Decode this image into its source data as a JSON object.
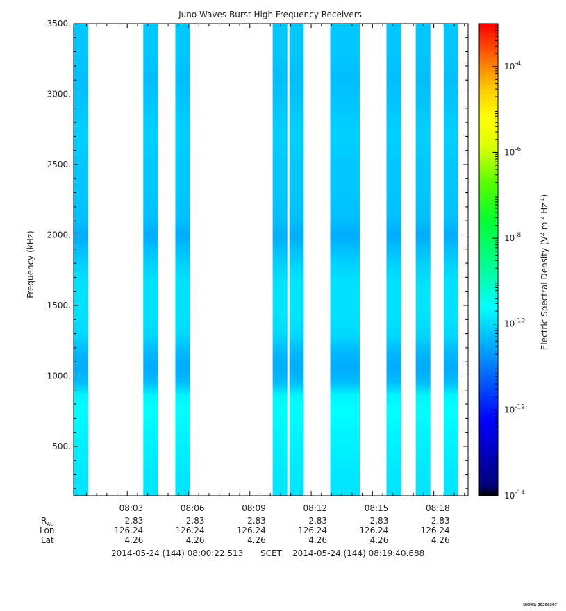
{
  "chart_data": {
    "type": "heatmap",
    "title": "Juno Waves Burst High Frequency Receivers",
    "ylabel": "Frequency (kHz)",
    "ylim": [
      150,
      3500
    ],
    "yticks": [
      "500.",
      "1000.",
      "1500.",
      "2000.",
      "2500.",
      "3000.",
      "3500."
    ],
    "ytick_values": [
      500,
      1000,
      1500,
      2000,
      2500,
      3000,
      3500
    ],
    "x_start": "2014-05-24T08:00:22.513",
    "x_end": "2014-05-24T08:19:40.688",
    "xticks": [
      "08:03",
      "08:06",
      "08:09",
      "08:12",
      "08:15",
      "08:18"
    ],
    "xtick_times": [
      "2014-05-24T08:03:00",
      "2014-05-24T08:06:00",
      "2014-05-24T08:09:00",
      "2014-05-24T08:12:00",
      "2014-05-24T08:15:00",
      "2014-05-24T08:18:00"
    ],
    "ephemeris": {
      "row_labels": {
        "r": "R",
        "r_sub": "AU",
        "lon": "Lon",
        "lat": "Lat"
      },
      "r_au": [
        "2.83",
        "2.83",
        "2.83",
        "2.83",
        "2.83",
        "2.83"
      ],
      "lon": [
        "126.24",
        "126.24",
        "126.24",
        "126.24",
        "126.24",
        "126.24"
      ],
      "lat": [
        "4.26",
        "4.26",
        "4.26",
        "4.26",
        "4.26",
        "4.26"
      ]
    },
    "time_range_label": {
      "start": "2014-05-24 (144) 08:00:22.513",
      "scet": "SCET",
      "end": "2014-05-24 (144) 08:19:40.688"
    },
    "colorbar": {
      "label_main": "Electric Spectral Density (V",
      "label_sup1": "2",
      "label_mid": " m",
      "label_sup2": "-2",
      "label_mid2": " Hz",
      "label_sup3": "-1",
      "label_end": ")",
      "scale": "log",
      "range_exponents": [
        -14,
        -3
      ],
      "tick_exponents": [
        "-4",
        "-6",
        "-8",
        "-10",
        "-12",
        "-14"
      ],
      "tick_values": [
        -4,
        -6,
        -8,
        -10,
        -12,
        -14
      ],
      "tick_base": "10"
    },
    "bursts": [
      {
        "start": "2014-05-24T08:00:22",
        "end": "2014-05-24T08:01:05"
      },
      {
        "start": "2014-05-24T08:03:47",
        "end": "2014-05-24T08:04:30"
      },
      {
        "start": "2014-05-24T08:05:21",
        "end": "2014-05-24T08:06:04"
      },
      {
        "start": "2014-05-24T08:10:07",
        "end": "2014-05-24T08:10:50"
      },
      {
        "start": "2014-05-24T08:10:56",
        "end": "2014-05-24T08:11:38"
      },
      {
        "start": "2014-05-24T08:12:56",
        "end": "2014-05-24T08:14:23"
      },
      {
        "start": "2014-05-24T08:15:41",
        "end": "2014-05-24T08:16:25"
      },
      {
        "start": "2014-05-24T08:17:07",
        "end": "2014-05-24T08:17:50"
      },
      {
        "start": "2014-05-24T08:18:29",
        "end": "2014-05-24T08:19:12"
      }
    ],
    "spectral_profile": {
      "freq_khz": [
        150,
        400,
        600,
        750,
        860,
        950,
        1050,
        1150,
        1300,
        1450,
        1650,
        1800,
        1900,
        2000,
        2100,
        2300,
        2500,
        2700,
        2900,
        3100,
        3300,
        3500
      ],
      "log10_density": [
        -9.9,
        -9.8,
        -9.7,
        -9.6,
        -9.7,
        -10.3,
        -10.5,
        -10.4,
        -10.0,
        -9.9,
        -9.9,
        -10.1,
        -10.3,
        -10.5,
        -10.3,
        -10.2,
        -10.2,
        -10.1,
        -10.2,
        -10.3,
        -10.2,
        -10.2
      ]
    }
  },
  "footer": {
    "watermark": "UIOWA 20200307"
  }
}
